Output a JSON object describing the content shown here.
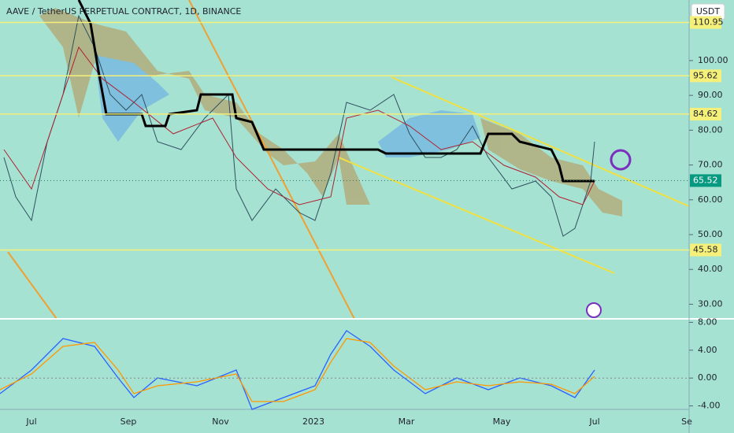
{
  "header": {
    "title": "AAVE / TetherUS PERPETUAL CONTRACT, 1D, BINANCE",
    "currency": "USDT"
  },
  "price_axis": {
    "ylim": [
      25.8,
      117.4
    ],
    "ticks": [
      {
        "value": 100,
        "label": "100.00"
      },
      {
        "value": 90,
        "label": "90.00"
      },
      {
        "value": 80,
        "label": "80.00"
      },
      {
        "value": 70,
        "label": "70.00"
      },
      {
        "value": 60,
        "label": "60.00"
      },
      {
        "value": 50,
        "label": "50.00"
      },
      {
        "value": 40,
        "label": "40.00"
      },
      {
        "value": 30,
        "label": "30.00"
      }
    ]
  },
  "levels": [
    {
      "value": 110.95,
      "label": "110.95"
    },
    {
      "value": 95.62,
      "label": "95.62"
    },
    {
      "value": 84.62,
      "label": "84.62"
    },
    {
      "value": 45.58,
      "label": "45.58"
    }
  ],
  "last_price": {
    "value": 65.52,
    "label": "65.52"
  },
  "macd_axis": {
    "ylim": [
      -4.5,
      8.5
    ],
    "ticks": [
      {
        "value": 8,
        "label": "8.00"
      },
      {
        "value": 4,
        "label": "4.00"
      },
      {
        "value": 0,
        "label": "0.00"
      },
      {
        "value": -4,
        "label": "-4.00"
      }
    ]
  },
  "time_axis": {
    "labels": [
      "Jul",
      "Sep",
      "Nov",
      "2023",
      "Mar",
      "May",
      "Jul",
      "Se"
    ]
  }
}
